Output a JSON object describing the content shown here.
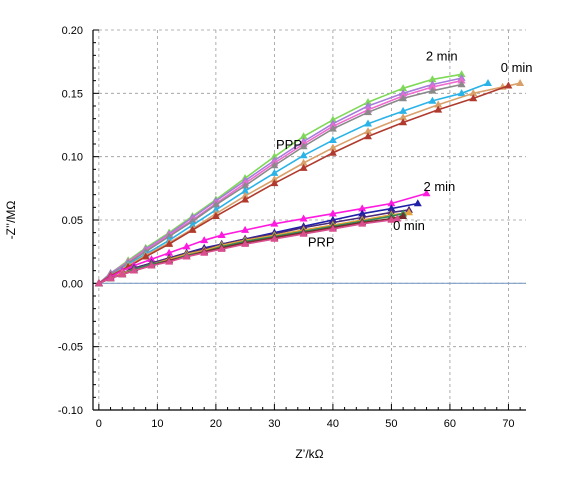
{
  "chart_data": {
    "type": "line",
    "xlabel": "Z’/kΩ",
    "ylabel": "-Z’’/MΩ",
    "xlim": [
      -1,
      73
    ],
    "ylim": [
      -0.1,
      0.2
    ],
    "grid": true,
    "x_ticks": [
      0,
      10,
      20,
      30,
      40,
      50,
      60,
      70
    ],
    "x_tick_labels": [
      "0",
      "10",
      "20",
      "30",
      "40",
      "50",
      "60",
      "70"
    ],
    "y_ticks": [
      -0.1,
      -0.05,
      0.0,
      0.05,
      0.1,
      0.15,
      0.2
    ],
    "y_tick_labels": [
      "-0.10",
      "-0.05",
      "0.00",
      "0.05",
      "0.10",
      "0.15",
      "0.20"
    ],
    "annotations": [
      {
        "text": "2 min",
        "x": 58.6,
        "y": 0.176
      },
      {
        "text": "0 min",
        "x": 71.4,
        "y": 0.167
      },
      {
        "text": "PPP",
        "x": 32.5,
        "y": 0.106
      },
      {
        "text": "2 min",
        "x": 58.2,
        "y": 0.073
      },
      {
        "text": "0 min",
        "x": 53.0,
        "y": 0.042
      },
      {
        "text": "PRP",
        "x": 38.0,
        "y": 0.029
      }
    ],
    "series": [
      {
        "color": "#7ed957",
        "points": [
          [
            0,
            0
          ],
          [
            2,
            0.008
          ],
          [
            5,
            0.018
          ],
          [
            8,
            0.028
          ],
          [
            12,
            0.04
          ],
          [
            16,
            0.053
          ],
          [
            20,
            0.066
          ],
          [
            25,
            0.083
          ],
          [
            30,
            0.1
          ],
          [
            35,
            0.116
          ],
          [
            40,
            0.129
          ],
          [
            46,
            0.143
          ],
          [
            52,
            0.154
          ],
          [
            57,
            0.161
          ],
          [
            62,
            0.165
          ]
        ]
      },
      {
        "color": "#a67bdc",
        "points": [
          [
            0,
            0
          ],
          [
            2,
            0.008
          ],
          [
            5,
            0.017
          ],
          [
            8,
            0.027
          ],
          [
            12,
            0.039
          ],
          [
            16,
            0.052
          ],
          [
            20,
            0.065
          ],
          [
            25,
            0.081
          ],
          [
            30,
            0.097
          ],
          [
            35,
            0.112
          ],
          [
            40,
            0.126
          ],
          [
            46,
            0.14
          ],
          [
            52,
            0.15
          ],
          [
            57,
            0.157
          ],
          [
            62,
            0.162
          ]
        ]
      },
      {
        "color": "#f06ad0",
        "points": [
          [
            0,
            0
          ],
          [
            2,
            0.007
          ],
          [
            5,
            0.017
          ],
          [
            8,
            0.026
          ],
          [
            12,
            0.038
          ],
          [
            16,
            0.05
          ],
          [
            20,
            0.063
          ],
          [
            25,
            0.079
          ],
          [
            30,
            0.095
          ],
          [
            35,
            0.11
          ],
          [
            40,
            0.124
          ],
          [
            46,
            0.137
          ],
          [
            52,
            0.148
          ],
          [
            57,
            0.155
          ],
          [
            62,
            0.16
          ]
        ]
      },
      {
        "color": "#8a8a8a",
        "points": [
          [
            0,
            0
          ],
          [
            2,
            0.007
          ],
          [
            5,
            0.016
          ],
          [
            8,
            0.025
          ],
          [
            12,
            0.037
          ],
          [
            16,
            0.049
          ],
          [
            20,
            0.062
          ],
          [
            25,
            0.077
          ],
          [
            30,
            0.093
          ],
          [
            35,
            0.108
          ],
          [
            40,
            0.122
          ],
          [
            46,
            0.135
          ],
          [
            52,
            0.146
          ],
          [
            57,
            0.152
          ],
          [
            62,
            0.157
          ]
        ]
      },
      {
        "color": "#2ab3e8",
        "points": [
          [
            0,
            0
          ],
          [
            2,
            0.006
          ],
          [
            5,
            0.015
          ],
          [
            8,
            0.023
          ],
          [
            12,
            0.034
          ],
          [
            16,
            0.046
          ],
          [
            20,
            0.058
          ],
          [
            25,
            0.073
          ],
          [
            30,
            0.087
          ],
          [
            35,
            0.101
          ],
          [
            40,
            0.113
          ],
          [
            46,
            0.126
          ],
          [
            52,
            0.136
          ],
          [
            57,
            0.144
          ],
          [
            62,
            0.15
          ],
          [
            66.5,
            0.158
          ]
        ]
      },
      {
        "color": "#d9a06a",
        "points": [
          [
            0,
            0
          ],
          [
            2,
            0.006
          ],
          [
            5,
            0.014
          ],
          [
            8,
            0.022
          ],
          [
            12,
            0.032
          ],
          [
            16,
            0.043
          ],
          [
            20,
            0.055
          ],
          [
            25,
            0.069
          ],
          [
            30,
            0.082
          ],
          [
            35,
            0.095
          ],
          [
            40,
            0.107
          ],
          [
            46,
            0.12
          ],
          [
            52,
            0.131
          ],
          [
            58,
            0.141
          ],
          [
            64,
            0.15
          ],
          [
            69,
            0.155
          ],
          [
            72,
            0.158
          ]
        ]
      },
      {
        "color": "#b03a2e",
        "points": [
          [
            0,
            0
          ],
          [
            2,
            0.006
          ],
          [
            5,
            0.013
          ],
          [
            8,
            0.021
          ],
          [
            12,
            0.031
          ],
          [
            16,
            0.042
          ],
          [
            20,
            0.053
          ],
          [
            25,
            0.066
          ],
          [
            30,
            0.079
          ],
          [
            35,
            0.091
          ],
          [
            40,
            0.103
          ],
          [
            46,
            0.116
          ],
          [
            52,
            0.127
          ],
          [
            58,
            0.137
          ],
          [
            64,
            0.146
          ],
          [
            70,
            0.156
          ]
        ]
      },
      {
        "color": "#ff1adf",
        "points": [
          [
            0,
            0
          ],
          [
            2,
            0.005
          ],
          [
            4,
            0.01
          ],
          [
            6,
            0.014
          ],
          [
            9,
            0.019
          ],
          [
            12,
            0.024
          ],
          [
            15,
            0.029
          ],
          [
            18,
            0.034
          ],
          [
            21,
            0.038
          ],
          [
            25,
            0.042
          ],
          [
            30,
            0.047
          ],
          [
            35,
            0.051
          ],
          [
            40,
            0.055
          ],
          [
            45,
            0.059
          ],
          [
            50,
            0.063
          ],
          [
            56,
            0.071
          ]
        ]
      },
      {
        "color": "#1f1fa8",
        "points": [
          [
            0,
            0
          ],
          [
            2,
            0.004
          ],
          [
            4,
            0.008
          ],
          [
            6,
            0.012
          ],
          [
            9,
            0.016
          ],
          [
            12,
            0.02
          ],
          [
            15,
            0.024
          ],
          [
            18,
            0.028
          ],
          [
            21,
            0.031
          ],
          [
            25,
            0.035
          ],
          [
            30,
            0.04
          ],
          [
            35,
            0.045
          ],
          [
            40,
            0.05
          ],
          [
            45,
            0.055
          ],
          [
            50,
            0.059
          ],
          [
            54.5,
            0.063
          ]
        ]
      },
      {
        "color": "#4a2a7a",
        "points": [
          [
            0,
            0
          ],
          [
            2,
            0.004
          ],
          [
            4,
            0.008
          ],
          [
            6,
            0.012
          ],
          [
            9,
            0.016
          ],
          [
            12,
            0.02
          ],
          [
            15,
            0.024
          ],
          [
            18,
            0.027
          ],
          [
            21,
            0.031
          ],
          [
            25,
            0.035
          ],
          [
            30,
            0.039
          ],
          [
            35,
            0.044
          ],
          [
            40,
            0.048
          ],
          [
            45,
            0.052
          ],
          [
            50,
            0.056
          ],
          [
            53,
            0.058
          ]
        ]
      },
      {
        "color": "#e8a23a",
        "points": [
          [
            0,
            0
          ],
          [
            2,
            0.004
          ],
          [
            4,
            0.008
          ],
          [
            6,
            0.011
          ],
          [
            9,
            0.015
          ],
          [
            12,
            0.019
          ],
          [
            15,
            0.023
          ],
          [
            18,
            0.026
          ],
          [
            21,
            0.03
          ],
          [
            25,
            0.034
          ],
          [
            30,
            0.038
          ],
          [
            35,
            0.042
          ],
          [
            40,
            0.046
          ],
          [
            45,
            0.05
          ],
          [
            50,
            0.054
          ],
          [
            53,
            0.056
          ]
        ]
      },
      {
        "color": "#2e8b57",
        "points": [
          [
            0,
            0
          ],
          [
            2,
            0.004
          ],
          [
            4,
            0.007
          ],
          [
            6,
            0.011
          ],
          [
            9,
            0.015
          ],
          [
            12,
            0.018
          ],
          [
            15,
            0.022
          ],
          [
            18,
            0.025
          ],
          [
            21,
            0.029
          ],
          [
            25,
            0.033
          ],
          [
            30,
            0.037
          ],
          [
            35,
            0.041
          ],
          [
            40,
            0.045
          ],
          [
            45,
            0.049
          ],
          [
            50,
            0.053
          ],
          [
            52,
            0.055
          ]
        ]
      },
      {
        "color": "#7a2a2a",
        "points": [
          [
            0,
            0
          ],
          [
            2,
            0.004
          ],
          [
            4,
            0.007
          ],
          [
            6,
            0.01
          ],
          [
            9,
            0.014
          ],
          [
            12,
            0.018
          ],
          [
            15,
            0.021
          ],
          [
            18,
            0.025
          ],
          [
            21,
            0.028
          ],
          [
            25,
            0.032
          ],
          [
            30,
            0.036
          ],
          [
            35,
            0.04
          ],
          [
            40,
            0.044
          ],
          [
            45,
            0.048
          ],
          [
            50,
            0.051
          ],
          [
            52,
            0.053
          ]
        ]
      },
      {
        "color": "#d94e8f",
        "points": [
          [
            0,
            0
          ],
          [
            2,
            0.004
          ],
          [
            4,
            0.007
          ],
          [
            6,
            0.01
          ],
          [
            9,
            0.014
          ],
          [
            12,
            0.017
          ],
          [
            15,
            0.021
          ],
          [
            18,
            0.024
          ],
          [
            21,
            0.027
          ],
          [
            25,
            0.031
          ],
          [
            30,
            0.035
          ],
          [
            35,
            0.039
          ],
          [
            40,
            0.043
          ],
          [
            45,
            0.047
          ],
          [
            50,
            0.05
          ],
          [
            51,
            0.051
          ]
        ]
      }
    ]
  }
}
